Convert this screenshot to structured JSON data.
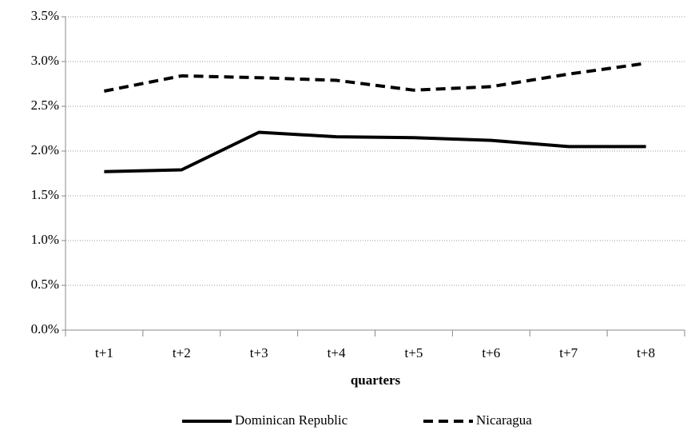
{
  "chart_data": {
    "type": "line",
    "x_label": "quarters",
    "categories": [
      "t+1",
      "t+2",
      "t+3",
      "t+4",
      "t+5",
      "t+6",
      "t+7",
      "t+8"
    ],
    "series": [
      {
        "name": "Dominican Republic",
        "color": "#000000",
        "dashed": false,
        "values": [
          1.77,
          1.79,
          2.21,
          2.16,
          2.15,
          2.12,
          2.05,
          2.05
        ]
      },
      {
        "name": "Nicaragua",
        "color": "#000000",
        "dashed": true,
        "values": [
          2.67,
          2.84,
          2.82,
          2.79,
          2.68,
          2.72,
          2.86,
          2.98
        ]
      }
    ],
    "ylim": [
      0,
      3.5
    ],
    "yticks": [
      {
        "value": 0,
        "label": "0.0%"
      },
      {
        "value": 0.5,
        "label": "0.5%"
      },
      {
        "value": 1,
        "label": "1.0%"
      },
      {
        "value": 1.5,
        "label": "1.5%"
      },
      {
        "value": 2,
        "label": "2.0%"
      },
      {
        "value": 2.5,
        "label": "2.5%"
      },
      {
        "value": 3,
        "label": "3.0%"
      },
      {
        "value": 3.5,
        "label": "3.5%"
      }
    ],
    "grid": true,
    "legend": "bottom"
  }
}
